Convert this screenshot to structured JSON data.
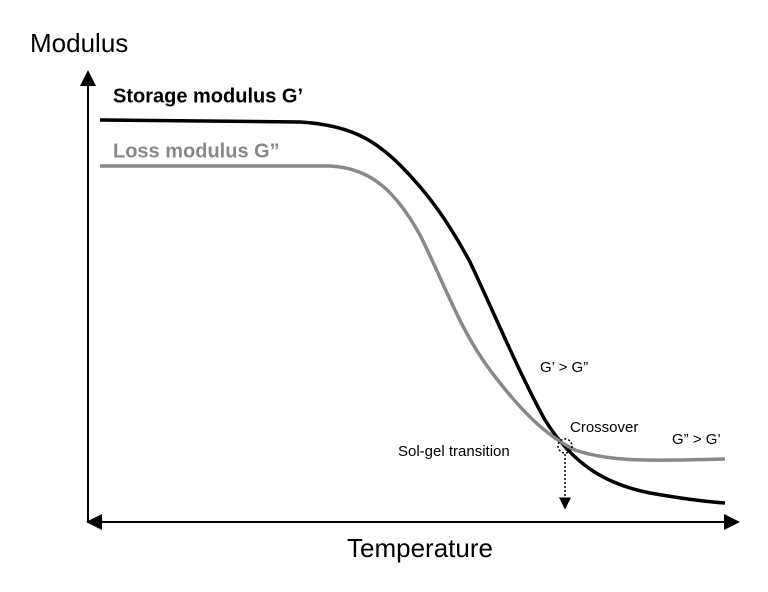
{
  "axes": {
    "y_label": "Modulus",
    "x_label": "Temperature"
  },
  "curves": {
    "storage": "Storage modulus G’",
    "loss": "Loss modulus G”"
  },
  "annotations": {
    "above": "G’ > G”",
    "crossover": "Crossover",
    "below": "G” > G’",
    "transition": "Sol-gel transition"
  }
}
